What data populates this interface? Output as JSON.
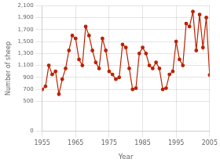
{
  "chart_data": {
    "type": "line",
    "x": [
      1955,
      1956,
      1957,
      1958,
      1959,
      1960,
      1961,
      1962,
      1963,
      1964,
      1965,
      1966,
      1967,
      1968,
      1969,
      1970,
      1971,
      1972,
      1973,
      1974,
      1975,
      1976,
      1977,
      1978,
      1979,
      1980,
      1981,
      1982,
      1983,
      1984,
      1985,
      1986,
      1987,
      1988,
      1989,
      1990,
      1991,
      1992,
      1993,
      1994,
      1995,
      1996,
      1997,
      1998,
      1999,
      2000,
      2001,
      2002,
      2003,
      2004,
      2005
    ],
    "values": [
      700,
      750,
      1100,
      950,
      1000,
      620,
      870,
      1050,
      1350,
      1600,
      1550,
      1200,
      1100,
      1750,
      1600,
      1350,
      1150,
      1050,
      1550,
      1350,
      1000,
      950,
      870,
      900,
      1450,
      1400,
      1050,
      700,
      720,
      1300,
      1400,
      1300,
      1100,
      1050,
      1150,
      1050,
      700,
      720,
      950,
      1000,
      1500,
      1200,
      1100,
      1800,
      1750,
      2000,
      1350,
      1950,
      1400,
      1900,
      940
    ],
    "xlabel": "Year",
    "ylabel": "Number of sheep",
    "xlim": [
      1955,
      2005
    ],
    "ylim": [
      0,
      2100
    ],
    "xticks": [
      1955,
      1965,
      1975,
      1985,
      1995,
      2005
    ],
    "yticks": [
      0,
      500,
      700,
      900,
      {
        "value": 1100,
        "label": "1,100"
      },
      {
        "value": 1300,
        "label": "1,300"
      },
      {
        "value": 1500,
        "label": "1,500"
      },
      {
        "value": 1700,
        "label": "1,700"
      },
      {
        "value": 1900,
        "label": "1,900"
      },
      {
        "value": 2100,
        "label": "2,100"
      }
    ],
    "grid": true,
    "color": "#bb2200",
    "marker": "circle"
  }
}
